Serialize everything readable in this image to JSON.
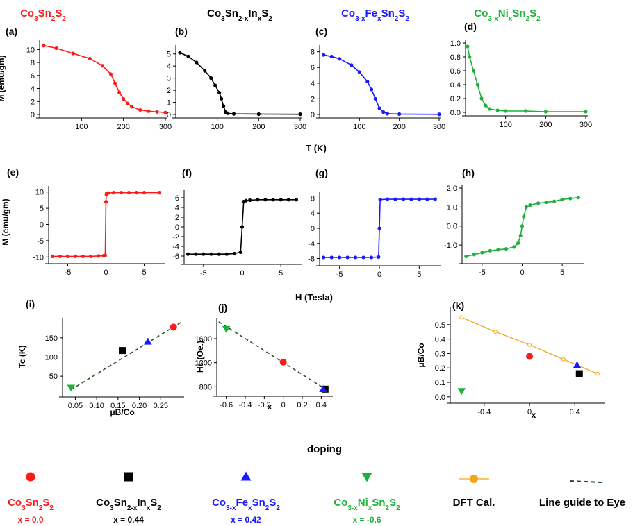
{
  "colors": {
    "co3sn2s2": "#ff1a1a",
    "in_doped": "#000000",
    "fe_doped": "#1a1aff",
    "ni_doped": "#1db33a",
    "dft": "#f2a516",
    "guide": "#1f4d1f"
  },
  "headers": [
    {
      "base": "Co",
      "parts": [
        [
          "Co",
          ""
        ],
        [
          "3",
          "sub"
        ],
        [
          "Sn",
          ""
        ],
        [
          "2",
          "sub"
        ],
        [
          "S",
          ""
        ],
        [
          "2",
          "sub"
        ]
      ]
    },
    {
      "parts": [
        [
          "Co",
          ""
        ],
        [
          "3",
          "sub"
        ],
        [
          "Sn",
          ""
        ],
        [
          "2-x",
          "sub"
        ],
        [
          "In",
          ""
        ],
        [
          "x",
          "sub"
        ],
        [
          "S",
          ""
        ],
        [
          "2",
          "sub"
        ]
      ]
    },
    {
      "parts": [
        [
          "Co",
          ""
        ],
        [
          "3-x",
          "sub"
        ],
        [
          "Fe",
          ""
        ],
        [
          "x",
          "sub"
        ],
        [
          "Sn",
          ""
        ],
        [
          "2",
          "sub"
        ],
        [
          "S",
          ""
        ],
        [
          "2",
          "sub"
        ]
      ]
    },
    {
      "parts": [
        [
          "Co",
          ""
        ],
        [
          "3-x",
          "sub"
        ],
        [
          "Ni",
          ""
        ],
        [
          "x",
          "sub"
        ],
        [
          "Sn",
          ""
        ],
        [
          "2",
          "sub"
        ],
        [
          "S",
          ""
        ],
        [
          "2",
          "sub"
        ]
      ]
    }
  ],
  "row_labels": {
    "mt_ylabel": "M (emu/gm)",
    "mt_xlabel": "T (K)",
    "mh_ylabel": "M (emu/gm)",
    "mh_xlabel": "H (Tesla)",
    "doping_label": "doping"
  },
  "legend": [
    {
      "marker": "circle",
      "parts": [
        [
          "Co",
          ""
        ],
        [
          "3",
          "sub"
        ],
        [
          "Sn",
          ""
        ],
        [
          "2",
          "sub"
        ],
        [
          "S",
          ""
        ],
        [
          "2",
          "sub"
        ]
      ],
      "note": "x = 0.0"
    },
    {
      "marker": "square",
      "parts": [
        [
          "Co",
          ""
        ],
        [
          "3",
          "sub"
        ],
        [
          "Sn",
          ""
        ],
        [
          "2-x",
          "sub"
        ],
        [
          "In",
          ""
        ],
        [
          "x",
          "sub"
        ],
        [
          "S",
          ""
        ],
        [
          "2",
          "sub"
        ]
      ],
      "note": "x = 0.44"
    },
    {
      "marker": "triangle-up",
      "parts": [
        [
          "Co",
          ""
        ],
        [
          "3-x",
          "sub"
        ],
        [
          "Fe",
          ""
        ],
        [
          "x",
          "sub"
        ],
        [
          "Sn",
          ""
        ],
        [
          "2",
          "sub"
        ],
        [
          "S",
          ""
        ],
        [
          "2",
          "sub"
        ]
      ],
      "note": "x = 0.42"
    },
    {
      "marker": "triangle-down",
      "parts": [
        [
          "Co",
          ""
        ],
        [
          "3-x",
          "sub"
        ],
        [
          "Ni",
          ""
        ],
        [
          "x",
          "sub"
        ],
        [
          "Sn",
          ""
        ],
        [
          "2",
          "sub"
        ],
        [
          "S",
          ""
        ],
        [
          "2",
          "sub"
        ]
      ],
      "note": "x = -0.6"
    },
    {
      "marker": "dft",
      "text": "DFT  Cal."
    },
    {
      "marker": "guide",
      "text": "Line guide to Eye"
    }
  ],
  "chart_data": [
    {
      "panel": "(a)",
      "type": "line",
      "series_key": "co3sn2s2",
      "xlim": [
        0,
        300
      ],
      "ylim": [
        0,
        11
      ],
      "xticks": [
        "100",
        "200",
        "300"
      ],
      "yticks": [
        "0",
        "2",
        "4",
        "6",
        "8",
        "10"
      ],
      "ylabel": "M (emu/gm)",
      "x": [
        10,
        40,
        80,
        120,
        150,
        170,
        180,
        190,
        200,
        210,
        220,
        240,
        260,
        280,
        300
      ],
      "y": [
        10.6,
        10.2,
        9.4,
        8.6,
        7.5,
        6.2,
        4.8,
        3.4,
        2.4,
        1.7,
        1.2,
        0.7,
        0.5,
        0.4,
        0.3
      ]
    },
    {
      "panel": "(b)",
      "type": "line",
      "series_key": "in_doped",
      "xlim": [
        0,
        300
      ],
      "ylim": [
        0,
        5.5
      ],
      "xticks": [
        "100",
        "200",
        "300"
      ],
      "yticks": [
        "0",
        "1",
        "2",
        "3",
        "4",
        "5"
      ],
      "x": [
        10,
        30,
        50,
        70,
        85,
        95,
        105,
        110,
        115,
        120,
        125,
        140,
        200,
        300
      ],
      "y": [
        5.1,
        4.8,
        4.3,
        3.6,
        3.0,
        2.4,
        1.8,
        1.3,
        0.7,
        0.2,
        0.1,
        0.05,
        0.03,
        0.02
      ]
    },
    {
      "panel": "(c)",
      "type": "line",
      "series_key": "fe_doped",
      "xlim": [
        0,
        300
      ],
      "ylim": [
        0,
        8.5
      ],
      "xticks": [
        "100",
        "200",
        "300"
      ],
      "yticks": [
        "0",
        "2",
        "4",
        "6",
        "8"
      ],
      "x": [
        10,
        30,
        50,
        80,
        100,
        120,
        130,
        140,
        150,
        160,
        170,
        200,
        300
      ],
      "y": [
        7.6,
        7.4,
        7.1,
        6.3,
        5.4,
        4.2,
        3.2,
        2.0,
        0.8,
        0.3,
        0.1,
        0.05,
        0.02
      ]
    },
    {
      "panel": "(d)",
      "type": "line",
      "series_key": "ni_doped",
      "xlim": [
        0,
        300
      ],
      "ylim": [
        0,
        1.0
      ],
      "xticks": [
        "100",
        "200",
        "300"
      ],
      "yticks": [
        "0.0",
        "0.2",
        "0.4",
        "0.6",
        "0.8",
        "1.0"
      ],
      "x": [
        5,
        10,
        20,
        30,
        40,
        50,
        60,
        80,
        100,
        150,
        200,
        300
      ],
      "y": [
        0.95,
        0.8,
        0.6,
        0.4,
        0.2,
        0.1,
        0.05,
        0.03,
        0.02,
        0.02,
        0.01,
        0.01
      ]
    },
    {
      "panel": "(e)",
      "type": "line",
      "series_key": "co3sn2s2",
      "xlim": [
        -7.5,
        7.5
      ],
      "ylim": [
        -11,
        11
      ],
      "xticks": [
        "-5",
        "0",
        "5"
      ],
      "yticks": [
        "-10",
        "-5",
        "0",
        "5",
        "10"
      ],
      "ylabel": "M (emu/gm)",
      "x": [
        -7,
        -6,
        -5,
        -4,
        -3,
        -2,
        -1,
        -0.3,
        -0.1,
        0,
        0.05,
        0.1,
        0.3,
        1,
        2,
        3,
        4,
        5,
        7
      ],
      "y": [
        -9.8,
        -9.8,
        -9.8,
        -9.8,
        -9.8,
        -9.8,
        -9.7,
        -9.6,
        -9.5,
        7.0,
        9.3,
        9.6,
        9.7,
        9.8,
        9.8,
        9.8,
        9.8,
        9.8,
        9.8
      ]
    },
    {
      "panel": "(f)",
      "type": "line",
      "series_key": "in_doped",
      "xlim": [
        -7.5,
        7.5
      ],
      "ylim": [
        -7,
        7
      ],
      "xticks": [
        "-5",
        "0",
        "5"
      ],
      "yticks": [
        "-6",
        "-4",
        "-2",
        "0",
        "2",
        "4",
        "6"
      ],
      "x": [
        -7,
        -6,
        -5,
        -4,
        -3,
        -2,
        -1,
        -0.2,
        0,
        0.2,
        0.5,
        1,
        2,
        3,
        4,
        5,
        6,
        7
      ],
      "y": [
        -5.6,
        -5.6,
        -5.6,
        -5.6,
        -5.6,
        -5.6,
        -5.5,
        -5.2,
        0,
        5.2,
        5.4,
        5.5,
        5.6,
        5.6,
        5.6,
        5.6,
        5.6,
        5.6
      ]
    },
    {
      "panel": "(g)",
      "type": "line",
      "series_key": "fe_doped",
      "xlim": [
        -7.5,
        7.5
      ],
      "ylim": [
        -9,
        9
      ],
      "xticks": [
        "-5",
        "0",
        "5"
      ],
      "yticks": [
        "-8",
        "-4",
        "0",
        "4",
        "8"
      ],
      "x": [
        -7,
        -6,
        -5,
        -4,
        -3,
        -2,
        -1,
        -0.1,
        0,
        0.1,
        1,
        2,
        3,
        4,
        5,
        6,
        7
      ],
      "y": [
        -7.7,
        -7.7,
        -7.7,
        -7.7,
        -7.7,
        -7.7,
        -7.7,
        -7.6,
        0,
        7.6,
        7.7,
        7.7,
        7.7,
        7.7,
        7.7,
        7.7,
        7.7
      ]
    },
    {
      "panel": "(h)",
      "type": "line",
      "series_key": "ni_doped",
      "xlim": [
        -7.5,
        7.5
      ],
      "ylim": [
        -1.8,
        2.0
      ],
      "xticks": [
        "-5",
        "0",
        "5"
      ],
      "yticks": [
        "-1.0",
        "0.0",
        "1.0",
        "2.0"
      ],
      "x": [
        -7,
        -6,
        -5,
        -4,
        -3,
        -2,
        -1,
        -0.5,
        -0.2,
        0,
        0.2,
        0.5,
        1,
        2,
        3,
        4,
        5,
        6,
        7
      ],
      "y": [
        -1.6,
        -1.5,
        -1.4,
        -1.3,
        -1.25,
        -1.2,
        -1.1,
        -0.9,
        -0.5,
        0.0,
        0.5,
        1.0,
        1.1,
        1.2,
        1.25,
        1.3,
        1.4,
        1.45,
        1.5
      ]
    },
    {
      "panel": "(i)",
      "type": "scatter",
      "xlim": [
        0.02,
        0.3
      ],
      "ylim": [
        5,
        195
      ],
      "xticks": [
        0.05,
        0.1,
        0.15,
        0.2,
        0.25
      ],
      "yticks": [
        50,
        100,
        150
      ],
      "xlabel": "μB/Co",
      "ylabel": "Tc (K)",
      "points": [
        {
          "x": 0.28,
          "y": 178,
          "marker": "circle",
          "series_key": "co3sn2s2"
        },
        {
          "x": 0.16,
          "y": 117,
          "marker": "square",
          "series_key": "in_doped"
        },
        {
          "x": 0.22,
          "y": 140,
          "marker": "triangle-up",
          "series_key": "fe_doped"
        },
        {
          "x": 0.04,
          "y": 20,
          "marker": "triangle-down",
          "series_key": "ni_doped"
        }
      ],
      "guide": {
        "x": [
          0.04,
          0.3
        ],
        "y": [
          15,
          192
        ]
      }
    },
    {
      "panel": "(j)",
      "type": "scatter",
      "xlim": [
        -0.7,
        0.5
      ],
      "ylim": [
        700,
        1900
      ],
      "xticks": [
        -0.6,
        -0.4,
        -0.2,
        0.0,
        0.2,
        0.4
      ],
      "yticks": [
        800,
        1200,
        1600
      ],
      "xlabel": "x",
      "ylabel": "Hc (Oe.)",
      "points": [
        {
          "x": 0.0,
          "y": 1210,
          "marker": "circle",
          "series_key": "co3sn2s2"
        },
        {
          "x": 0.44,
          "y": 760,
          "marker": "square",
          "series_key": "in_doped"
        },
        {
          "x": 0.42,
          "y": 760,
          "marker": "triangle-up",
          "series_key": "fe_doped"
        },
        {
          "x": -0.6,
          "y": 1760,
          "marker": "triangle-down",
          "series_key": "ni_doped"
        }
      ],
      "guide": {
        "x": [
          -0.68,
          0.46
        ],
        "y": [
          1880,
          745
        ]
      }
    },
    {
      "panel": "(k)",
      "type": "scatter",
      "xlim": [
        -0.7,
        0.65
      ],
      "ylim": [
        -0.02,
        0.6
      ],
      "xticks": [
        -0.4,
        0.0,
        0.4
      ],
      "yticks": [
        0.0,
        0.1,
        0.2,
        0.3,
        0.4,
        0.5
      ],
      "xlabel": "x",
      "ylabel": "μB/Co",
      "points": [
        {
          "x": 0.0,
          "y": 0.28,
          "marker": "circle",
          "series_key": "co3sn2s2"
        },
        {
          "x": 0.44,
          "y": 0.16,
          "marker": "square",
          "series_key": "in_doped"
        },
        {
          "x": 0.42,
          "y": 0.22,
          "marker": "triangle-up",
          "series_key": "fe_doped"
        },
        {
          "x": -0.6,
          "y": 0.04,
          "marker": "triangle-down",
          "series_key": "ni_doped"
        }
      ],
      "dft": {
        "x": [
          -0.6,
          -0.3,
          0.0,
          0.3,
          0.6
        ],
        "y": [
          0.55,
          0.45,
          0.36,
          0.26,
          0.16
        ]
      }
    }
  ]
}
